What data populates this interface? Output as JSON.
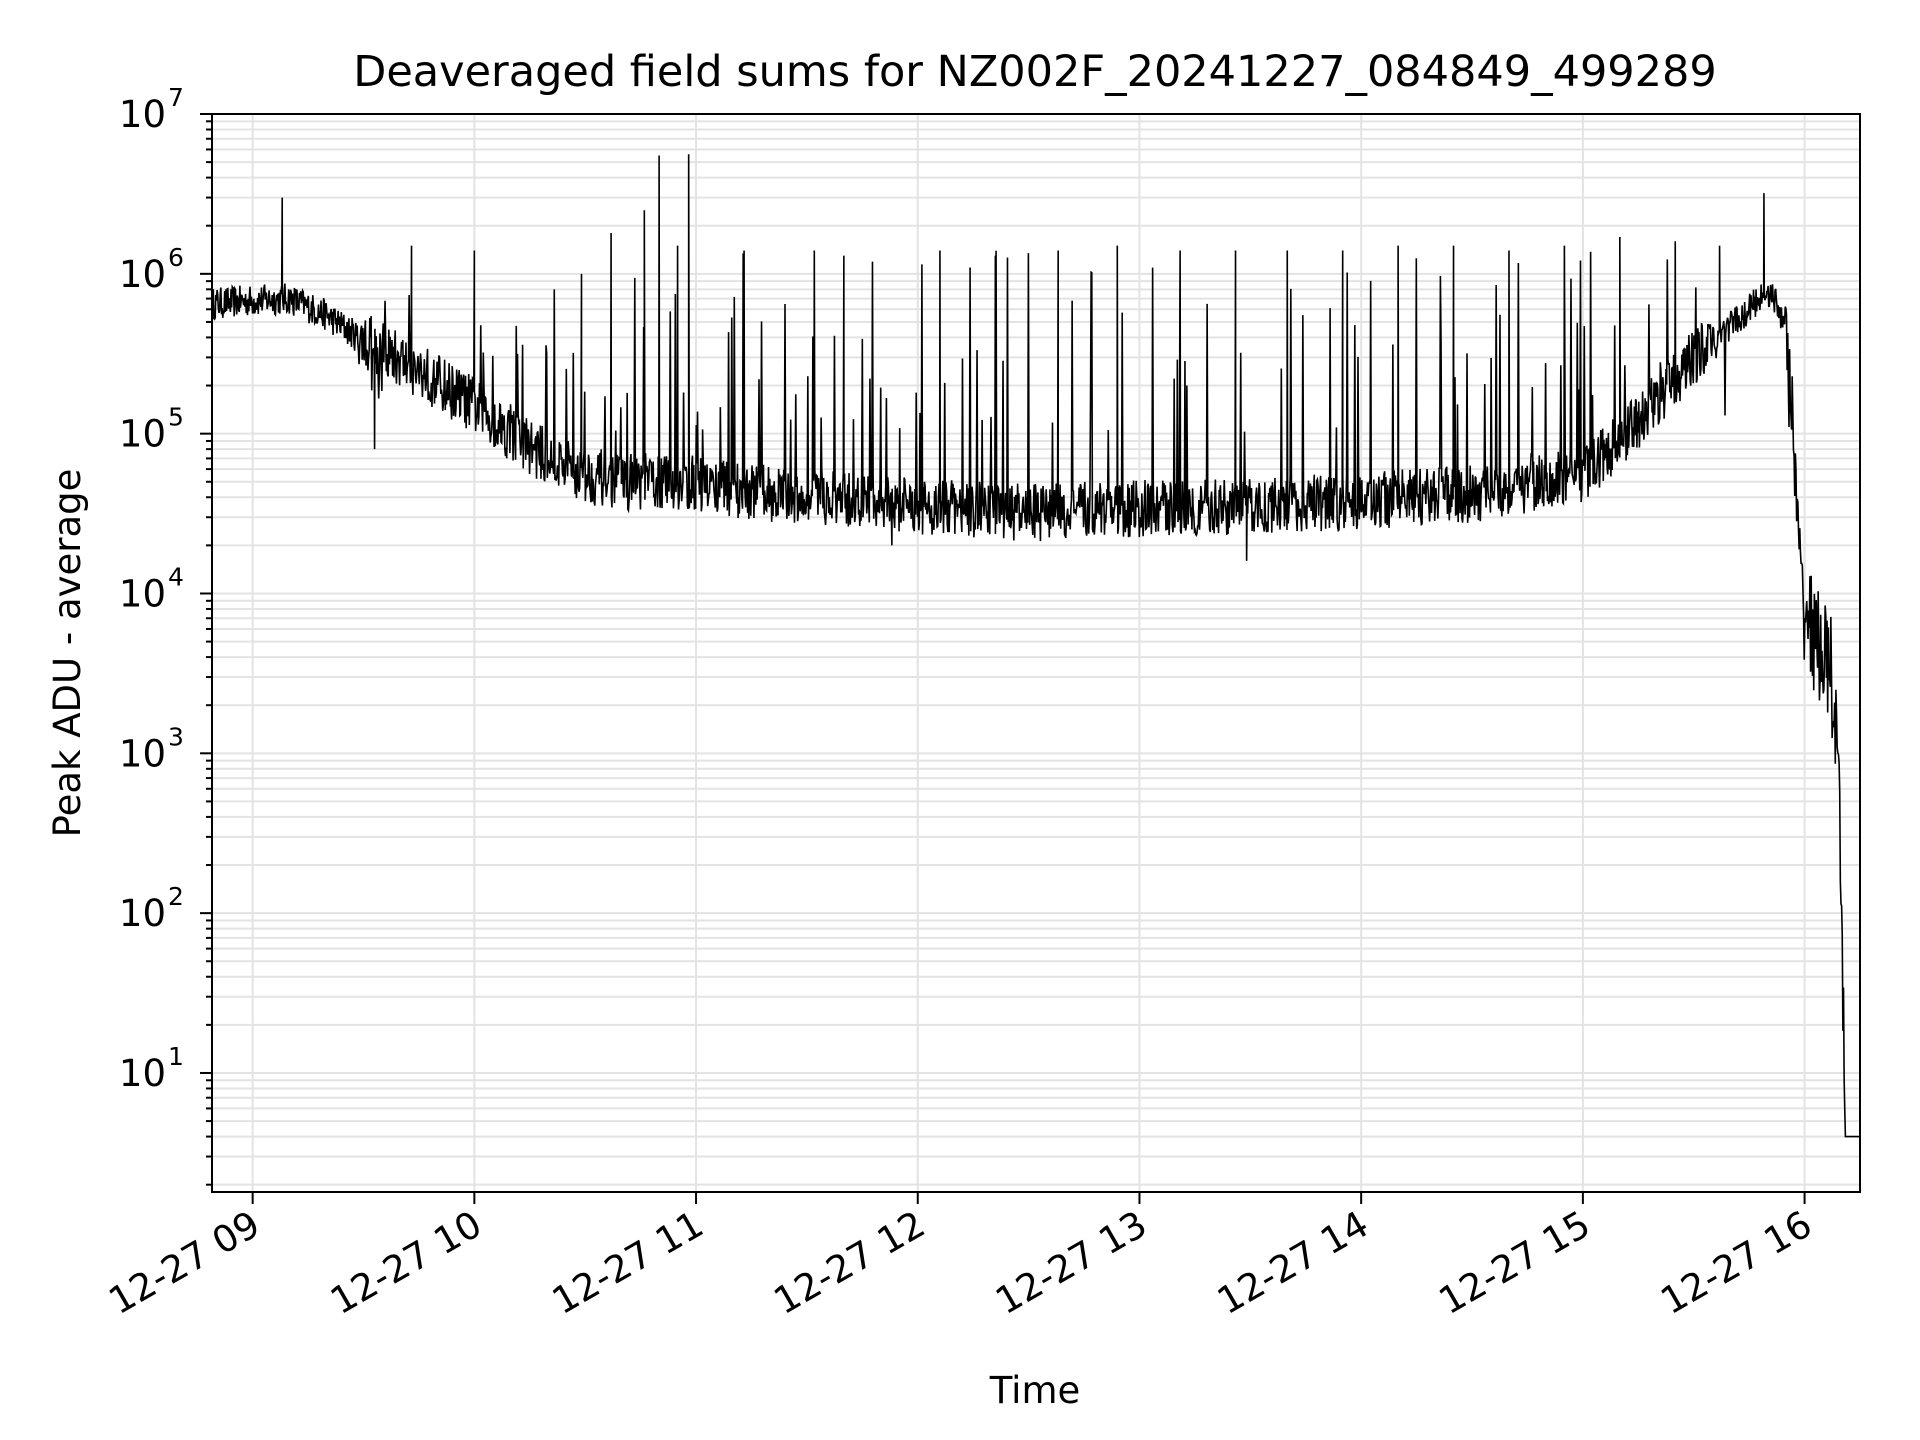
{
  "chart_data": {
    "type": "line",
    "title": "Deaveraged field sums for NZ002F_20241227_084849_499289",
    "xlabel": "Time",
    "ylabel": "Peak ADU - average",
    "yscale": "log",
    "ylim": [
      1.8,
      10000000
    ],
    "xlim": [
      "2024-12-27 08:49",
      "2024-12-27 16:15"
    ],
    "grid": true,
    "line_color": "#000000",
    "x_ticks": [
      "12-27 09",
      "12-27 10",
      "12-27 11",
      "12-27 12",
      "12-27 13",
      "12-27 14",
      "12-27 15",
      "12-27 16"
    ],
    "y_ticks": [
      {
        "base": "10",
        "exp": "1",
        "value": 10
      },
      {
        "base": "10",
        "exp": "2",
        "value": 100
      },
      {
        "base": "10",
        "exp": "3",
        "value": 1000
      },
      {
        "base": "10",
        "exp": "4",
        "value": 10000
      },
      {
        "base": "10",
        "exp": "5",
        "value": 100000
      },
      {
        "base": "10",
        "exp": "6",
        "value": 1000000
      },
      {
        "base": "10",
        "exp": "7",
        "value": 10000000
      }
    ],
    "baseline": [
      [
        "2024-12-27 08:49",
        650000
      ],
      [
        "2024-12-27 09:00",
        680000
      ],
      [
        "2024-12-27 09:10",
        700000
      ],
      [
        "2024-12-27 09:20",
        550000
      ],
      [
        "2024-12-27 09:30",
        380000
      ],
      [
        "2024-12-27 09:45",
        250000
      ],
      [
        "2024-12-27 10:00",
        150000
      ],
      [
        "2024-12-27 10:10",
        100000
      ],
      [
        "2024-12-27 10:20",
        70000
      ],
      [
        "2024-12-27 10:30",
        55000
      ],
      [
        "2024-12-27 10:40",
        50000
      ],
      [
        "2024-12-27 10:50",
        50000
      ],
      [
        "2024-12-27 11:00",
        48000
      ],
      [
        "2024-12-27 11:30",
        40000
      ],
      [
        "2024-12-27 12:00",
        35000
      ],
      [
        "2024-12-27 12:30",
        32000
      ],
      [
        "2024-12-27 13:00",
        34000
      ],
      [
        "2024-12-27 13:30",
        35000
      ],
      [
        "2024-12-27 14:00",
        38000
      ],
      [
        "2024-12-27 14:30",
        42000
      ],
      [
        "2024-12-27 15:00",
        55000
      ],
      [
        "2024-12-27 15:15",
        120000
      ],
      [
        "2024-12-27 15:30",
        300000
      ],
      [
        "2024-12-27 15:45",
        600000
      ],
      [
        "2024-12-27 15:50",
        800000
      ],
      [
        "2024-12-27 15:55",
        500000
      ],
      [
        "2024-12-27 15:57",
        80000
      ],
      [
        "2024-12-27 15:59",
        10000
      ],
      [
        "2024-12-27 16:03",
        5000
      ],
      [
        "2024-12-27 16:07",
        3500
      ],
      [
        "2024-12-27 16:09",
        800
      ],
      [
        "2024-12-27 16:10",
        100
      ],
      [
        "2024-12-27 16:11",
        4
      ],
      [
        "2024-12-27 16:15",
        4
      ]
    ],
    "spikes": [
      [
        "2024-12-27 09:08",
        3000000
      ],
      [
        "2024-12-27 09:33",
        80000
      ],
      [
        "2024-12-27 09:43",
        1500000
      ],
      [
        "2024-12-27 10:00",
        1400000
      ],
      [
        "2024-12-27 10:29",
        1000000
      ],
      [
        "2024-12-27 10:37",
        1800000
      ],
      [
        "2024-12-27 10:46",
        2500000
      ],
      [
        "2024-12-27 10:50",
        5500000
      ],
      [
        "2024-12-27 10:55",
        1500000
      ],
      [
        "2024-12-27 10:58",
        5600000
      ],
      [
        "2024-12-27 11:13",
        1400000
      ],
      [
        "2024-12-27 11:32",
        1400000
      ],
      [
        "2024-12-27 11:40",
        1300000
      ],
      [
        "2024-12-27 11:53",
        20000
      ],
      [
        "2024-12-27 12:06",
        1400000
      ],
      [
        "2024-12-27 12:21",
        1300000
      ],
      [
        "2024-12-27 12:38",
        1400000
      ],
      [
        "2024-12-27 12:54",
        1500000
      ],
      [
        "2024-12-27 13:11",
        1400000
      ],
      [
        "2024-12-27 13:26",
        1400000
      ],
      [
        "2024-12-27 13:29",
        16000
      ],
      [
        "2024-12-27 13:40",
        1400000
      ],
      [
        "2024-12-27 13:55",
        1400000
      ],
      [
        "2024-12-27 14:10",
        1500000
      ],
      [
        "2024-12-27 14:25",
        1500000
      ],
      [
        "2024-12-27 14:40",
        1400000
      ],
      [
        "2024-12-27 14:55",
        1500000
      ],
      [
        "2024-12-27 15:10",
        1700000
      ],
      [
        "2024-12-27 15:25",
        1600000
      ],
      [
        "2024-12-27 15:37",
        1500000
      ],
      [
        "2024-12-27 15:49",
        3200000
      ]
    ]
  }
}
